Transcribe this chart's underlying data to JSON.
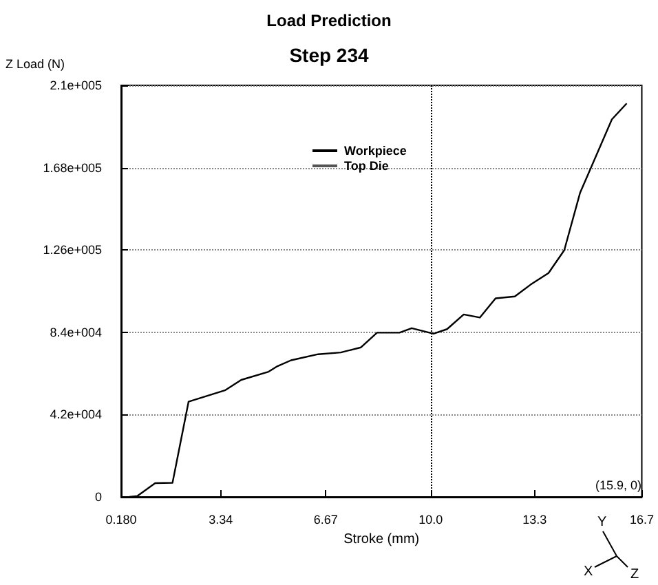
{
  "chart_data": {
    "type": "line",
    "title": "Load Prediction",
    "subtitle": "Step 234",
    "xlabel": "Stroke (mm)",
    "ylabel": "Z Load (N)",
    "x": [
      0.44,
      0.7,
      1.26,
      1.81,
      2.32,
      3.49,
      3.99,
      4.86,
      5.14,
      5.57,
      6.43,
      7.15,
      7.79,
      8.3,
      9.01,
      9.4,
      10.09,
      10.52,
      11.05,
      11.56,
      12.06,
      12.67,
      13.17,
      13.74,
      14.24,
      14.74,
      15.75,
      16.22
    ],
    "series": [
      {
        "name": "Workpiece",
        "color": "#000000",
        "values": [
          0,
          500,
          7000,
          7200,
          48600,
          54500,
          59700,
          63900,
          66700,
          69700,
          72800,
          73700,
          76300,
          83800,
          83800,
          86100,
          83300,
          85600,
          93100,
          91500,
          101300,
          102300,
          108300,
          114200,
          125900,
          155100,
          192600,
          200800
        ]
      },
      {
        "name": "Top Die",
        "color": "#555555",
        "values": [
          null,
          null,
          null,
          null,
          null,
          null,
          null,
          null,
          null,
          null,
          null,
          null,
          null,
          null,
          null,
          null,
          null,
          null,
          null,
          null,
          null,
          null,
          null,
          null,
          null,
          null,
          null,
          null
        ]
      }
    ],
    "xlim": [
      0.18,
      16.7
    ],
    "xticks": [
      {
        "value": 0.18,
        "label": "0.180"
      },
      3.34,
      6.67,
      {
        "value": 10.0,
        "label": "10.0"
      },
      13.3,
      16.7
    ],
    "ylim": [
      0,
      210000
    ],
    "yticks": [
      0,
      {
        "value": 42000,
        "label": "4.2e+004"
      },
      {
        "value": 84000,
        "label": "8.4e+004"
      },
      {
        "value": 126000,
        "label": "1.26e+005"
      },
      {
        "value": 168000,
        "label": "1.68e+005"
      },
      {
        "value": 210000,
        "label": "2.1e+005"
      }
    ],
    "ref_lines": [
      {
        "axis": "x",
        "value": 10.0,
        "line_style": "dotted",
        "color": "#000000"
      }
    ],
    "grid": "y",
    "legend": "top",
    "annotations": [
      "(15.9, 0)",
      "Y",
      "X",
      "Z"
    ]
  }
}
